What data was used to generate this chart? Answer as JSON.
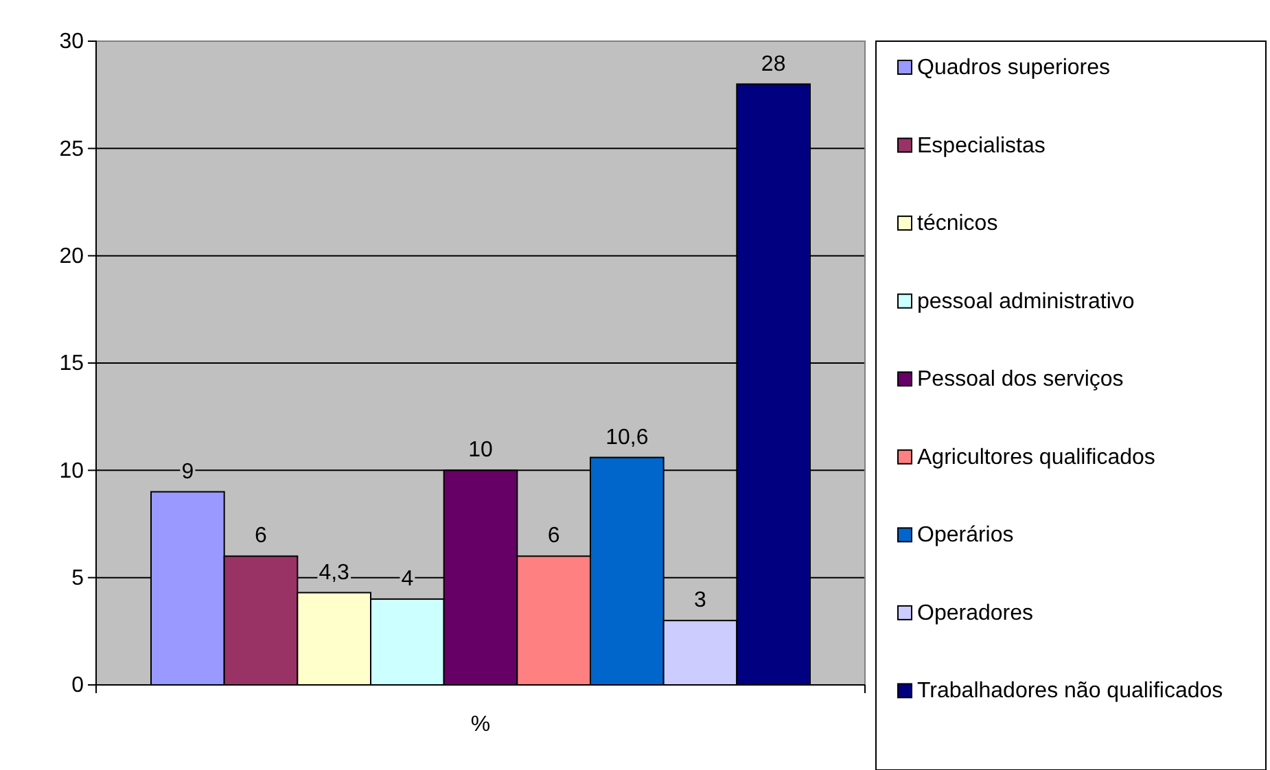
{
  "chart_data": {
    "type": "bar",
    "categories": [
      "%"
    ],
    "series": [
      {
        "name": "Quadros superiores",
        "color": "#9999ff",
        "values": [
          9
        ],
        "value_labels": [
          "9"
        ]
      },
      {
        "name": "Especialistas",
        "color": "#993366",
        "values": [
          6
        ],
        "value_labels": [
          "6"
        ]
      },
      {
        "name": "técnicos",
        "color": "#ffffcc",
        "values": [
          4.3
        ],
        "value_labels": [
          "4,3"
        ]
      },
      {
        "name": "pessoal administrativo",
        "color": "#ccffff",
        "values": [
          4
        ],
        "value_labels": [
          "4"
        ]
      },
      {
        "name": "Pessoal dos serviços",
        "color": "#660066",
        "values": [
          10
        ],
        "value_labels": [
          "10"
        ]
      },
      {
        "name": "Agricultores qualificados",
        "color": "#ff8080",
        "values": [
          6
        ],
        "value_labels": [
          "6"
        ]
      },
      {
        "name": "Operários",
        "color": "#0066cc",
        "values": [
          10.6
        ],
        "value_labels": [
          "10,6"
        ]
      },
      {
        "name": "Operadores",
        "color": "#ccccff",
        "values": [
          3
        ],
        "value_labels": [
          "3"
        ]
      },
      {
        "name": "Trabalhadores não qualificados",
        "color": "#000080",
        "values": [
          28
        ],
        "value_labels": [
          "28"
        ]
      }
    ],
    "legend": "right",
    "grid": "y",
    "ylim": [
      0,
      30
    ],
    "yticks": [
      0,
      5,
      10,
      15,
      20,
      25,
      30
    ]
  }
}
